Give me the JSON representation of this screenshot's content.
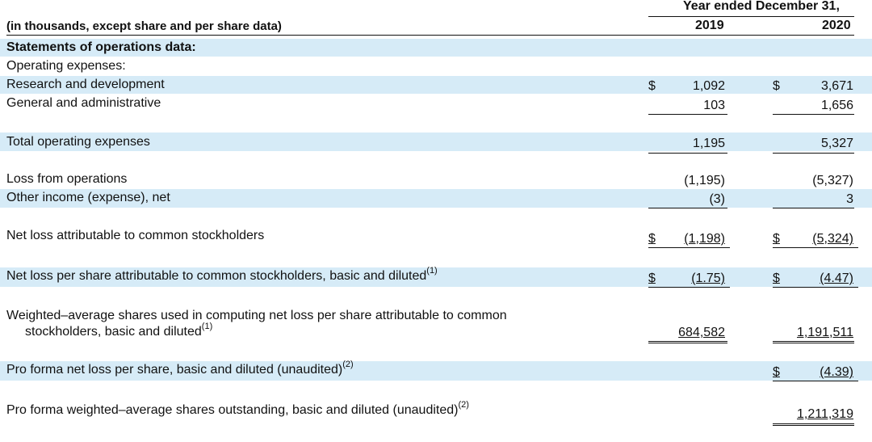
{
  "header": {
    "period_title": "Year ended December 31,",
    "units_label": "(in thousands, except share and per share data)",
    "year_2019": "2019",
    "year_2020": "2020"
  },
  "section_title": "Statements of operations data:",
  "subsection_title": "Operating expenses:",
  "rows": {
    "rd": {
      "label": "Research and development",
      "cur19": "$",
      "v19": "1,092",
      "cur20": "$",
      "v20": "3,671"
    },
    "ga": {
      "label": "General and administrative",
      "v19": "103",
      "v20": "1,656"
    },
    "total": {
      "label": "Total operating expenses",
      "v19": "1,195",
      "v20": "5,327"
    },
    "loss_ops": {
      "label": "Loss from operations",
      "v19": "(1,195)",
      "v20": "(5,327)"
    },
    "other": {
      "label": "Other income (expense), net",
      "v19": "(3)",
      "v20": "3"
    },
    "net_loss": {
      "label": "Net loss attributable to common stockholders",
      "cur19": "$",
      "v19": "(1,198)",
      "cur20": "$",
      "v20": "(5,324)"
    },
    "eps": {
      "label": "Net loss per share attributable to common stockholders, basic and diluted",
      "sup": "(1)",
      "cur19": "$",
      "v19": "(1.75)",
      "cur20": "$",
      "v20": "(4.47)"
    },
    "wavg": {
      "label_line1": "Weighted–average shares used in computing net loss per share attributable to common",
      "label_line2": "stockholders, basic and diluted",
      "sup": "(1)",
      "v19": "684,582",
      "v20": "1,191,511"
    },
    "pf_eps": {
      "label": "Pro forma net loss per share, basic and diluted (unaudited)",
      "sup": "(2)",
      "cur20": "$",
      "v20": "(4.39)"
    },
    "pf_wavg": {
      "label": "Pro forma weighted–average shares outstanding, basic and diluted (unaudited)",
      "sup": "(2)",
      "v20": "1,211,319"
    }
  },
  "colors": {
    "shade": "#d6ebf7",
    "text": "#111111"
  }
}
